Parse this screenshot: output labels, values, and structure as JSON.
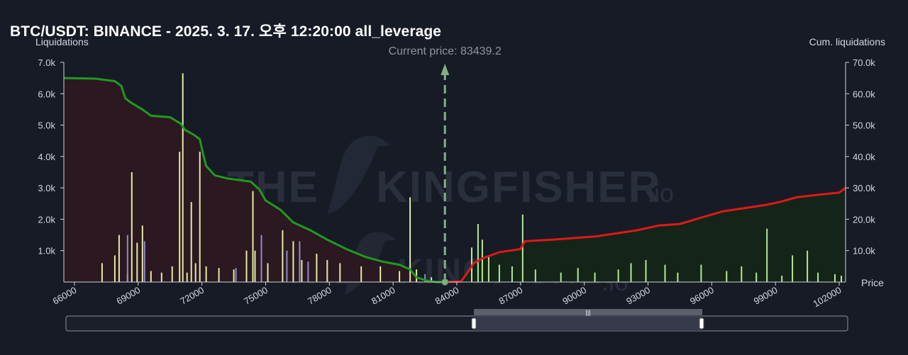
{
  "title": "BTC/USDT: BINANCE - 2025. 3. 17. 오후 12:20:00 all_leverage",
  "watermark": {
    "main": "THE KINGFISHER",
    "suffix": ".io"
  },
  "colors": {
    "background": "#171b26",
    "bar": "#e6e9a6",
    "bar_alt": "#8d8cc8",
    "bar_above": "#b8e69a",
    "cum_below_line": "#1f9a1f",
    "cum_above_line": "#e01818",
    "cum_below_fill": "#2b1820",
    "cum_above_fill": "#142418",
    "current_price": "#7fb27f"
  },
  "chart_data": {
    "type": "bar",
    "xlabel": "Price",
    "ylabel_left": "Liquidations",
    "ylabel_right": "Cum. liquidations",
    "current_price_label": "Current price: 83439.2",
    "current_price": 83439.2,
    "xlim": [
      65500,
      102300
    ],
    "ylim_left": [
      0,
      7000
    ],
    "ylim_right": [
      0,
      70000
    ],
    "x_ticks": [
      "66000",
      "69000",
      "72000",
      "75000",
      "78000",
      "81000",
      "84000",
      "87000",
      "90000",
      "93000",
      "96000",
      "99000",
      "102000"
    ],
    "y_ticks_left": [
      "1.0k",
      "2.0k",
      "3.0k",
      "4.0k",
      "5.0k",
      "6.0k",
      "7.0k"
    ],
    "y_ticks_right": [
      "10.0k",
      "20.0k",
      "30.0k",
      "40.0k",
      "50.0k",
      "60.0k",
      "70.0k"
    ],
    "bars": [
      {
        "x": 67300,
        "y": 600
      },
      {
        "x": 67900,
        "y": 850
      },
      {
        "x": 68100,
        "y": 1500
      },
      {
        "x": 68500,
        "y": 250
      },
      {
        "x": 68700,
        "y": 3500
      },
      {
        "x": 68950,
        "y": 1250
      },
      {
        "x": 69200,
        "y": 1800
      },
      {
        "x": 69600,
        "y": 350
      },
      {
        "x": 70100,
        "y": 300
      },
      {
        "x": 70600,
        "y": 500
      },
      {
        "x": 70950,
        "y": 4150
      },
      {
        "x": 71100,
        "y": 6650
      },
      {
        "x": 71300,
        "y": 300
      },
      {
        "x": 71500,
        "y": 2550
      },
      {
        "x": 71700,
        "y": 600
      },
      {
        "x": 71900,
        "y": 4150
      },
      {
        "x": 72200,
        "y": 500
      },
      {
        "x": 72800,
        "y": 450
      },
      {
        "x": 73500,
        "y": 400
      },
      {
        "x": 74100,
        "y": 1000
      },
      {
        "x": 74400,
        "y": 2900
      },
      {
        "x": 74500,
        "y": 1000
      },
      {
        "x": 75100,
        "y": 600
      },
      {
        "x": 75800,
        "y": 1650
      },
      {
        "x": 76300,
        "y": 1300
      },
      {
        "x": 76700,
        "y": 700
      },
      {
        "x": 77400,
        "y": 900
      },
      {
        "x": 77900,
        "y": 700
      },
      {
        "x": 78500,
        "y": 600
      },
      {
        "x": 79500,
        "y": 500
      },
      {
        "x": 80400,
        "y": 500
      },
      {
        "x": 81300,
        "y": 350
      },
      {
        "x": 81800,
        "y": 2700
      },
      {
        "x": 82100,
        "y": 400
      },
      {
        "x": 82800,
        "y": 150
      },
      {
        "x": 84700,
        "y": 1100
      },
      {
        "x": 85000,
        "y": 1850
      },
      {
        "x": 85200,
        "y": 1350
      },
      {
        "x": 85500,
        "y": 800
      },
      {
        "x": 86000,
        "y": 550
      },
      {
        "x": 86600,
        "y": 500
      },
      {
        "x": 87100,
        "y": 2150
      },
      {
        "x": 87700,
        "y": 400
      },
      {
        "x": 88900,
        "y": 300
      },
      {
        "x": 89700,
        "y": 450
      },
      {
        "x": 90500,
        "y": 300
      },
      {
        "x": 91600,
        "y": 400
      },
      {
        "x": 92200,
        "y": 600
      },
      {
        "x": 92900,
        "y": 700
      },
      {
        "x": 93800,
        "y": 550
      },
      {
        "x": 94400,
        "y": 300
      },
      {
        "x": 95500,
        "y": 550
      },
      {
        "x": 96700,
        "y": 350
      },
      {
        "x": 97400,
        "y": 500
      },
      {
        "x": 98100,
        "y": 300
      },
      {
        "x": 98600,
        "y": 1700
      },
      {
        "x": 99300,
        "y": 200
      },
      {
        "x": 99800,
        "y": 850
      },
      {
        "x": 100500,
        "y": 1000
      },
      {
        "x": 101000,
        "y": 300
      },
      {
        "x": 101800,
        "y": 250
      },
      {
        "x": 102100,
        "y": 200
      }
    ],
    "alt_bars": [
      {
        "x": 68500,
        "y": 1500
      },
      {
        "x": 69300,
        "y": 1300
      },
      {
        "x": 73600,
        "y": 450
      },
      {
        "x": 74800,
        "y": 1500
      },
      {
        "x": 76000,
        "y": 1000
      },
      {
        "x": 76600,
        "y": 1300
      },
      {
        "x": 77000,
        "y": 650
      },
      {
        "x": 82500,
        "y": 250
      }
    ],
    "cumulative_below": [
      {
        "x": 65500,
        "y": 65000
      },
      {
        "x": 67000,
        "y": 64800
      },
      {
        "x": 67900,
        "y": 64000
      },
      {
        "x": 68200,
        "y": 62500
      },
      {
        "x": 68400,
        "y": 58500
      },
      {
        "x": 68700,
        "y": 57000
      },
      {
        "x": 69200,
        "y": 55000
      },
      {
        "x": 69600,
        "y": 53000
      },
      {
        "x": 70500,
        "y": 52500
      },
      {
        "x": 71000,
        "y": 50500
      },
      {
        "x": 71200,
        "y": 48500
      },
      {
        "x": 71600,
        "y": 47000
      },
      {
        "x": 71900,
        "y": 45500
      },
      {
        "x": 72050,
        "y": 41000
      },
      {
        "x": 72200,
        "y": 37000
      },
      {
        "x": 72600,
        "y": 34000
      },
      {
        "x": 73200,
        "y": 33000
      },
      {
        "x": 74300,
        "y": 32000
      },
      {
        "x": 74700,
        "y": 29500
      },
      {
        "x": 75000,
        "y": 26000
      },
      {
        "x": 75700,
        "y": 23000
      },
      {
        "x": 76300,
        "y": 19000
      },
      {
        "x": 77100,
        "y": 16500
      },
      {
        "x": 77900,
        "y": 13500
      },
      {
        "x": 78800,
        "y": 10500
      },
      {
        "x": 79700,
        "y": 8000
      },
      {
        "x": 80500,
        "y": 6500
      },
      {
        "x": 81300,
        "y": 5500
      },
      {
        "x": 81800,
        "y": 4000
      },
      {
        "x": 82100,
        "y": 1500
      },
      {
        "x": 82600,
        "y": 400
      },
      {
        "x": 83000,
        "y": 0
      },
      {
        "x": 83439,
        "y": 0
      }
    ],
    "cumulative_above": [
      {
        "x": 83439,
        "y": 0
      },
      {
        "x": 84200,
        "y": 200
      },
      {
        "x": 84500,
        "y": 3000
      },
      {
        "x": 84800,
        "y": 6000
      },
      {
        "x": 85200,
        "y": 7500
      },
      {
        "x": 86000,
        "y": 9500
      },
      {
        "x": 87000,
        "y": 10500
      },
      {
        "x": 87200,
        "y": 13000
      },
      {
        "x": 88500,
        "y": 13500
      },
      {
        "x": 89500,
        "y": 14000
      },
      {
        "x": 90500,
        "y": 14500
      },
      {
        "x": 91500,
        "y": 15500
      },
      {
        "x": 92500,
        "y": 16500
      },
      {
        "x": 93500,
        "y": 18000
      },
      {
        "x": 94500,
        "y": 18500
      },
      {
        "x": 95500,
        "y": 20500
      },
      {
        "x": 96500,
        "y": 22500
      },
      {
        "x": 97500,
        "y": 23500
      },
      {
        "x": 98500,
        "y": 24500
      },
      {
        "x": 99200,
        "y": 25500
      },
      {
        "x": 100000,
        "y": 27000
      },
      {
        "x": 101000,
        "y": 27800
      },
      {
        "x": 102000,
        "y": 28500
      },
      {
        "x": 102300,
        "y": 30000
      }
    ]
  }
}
